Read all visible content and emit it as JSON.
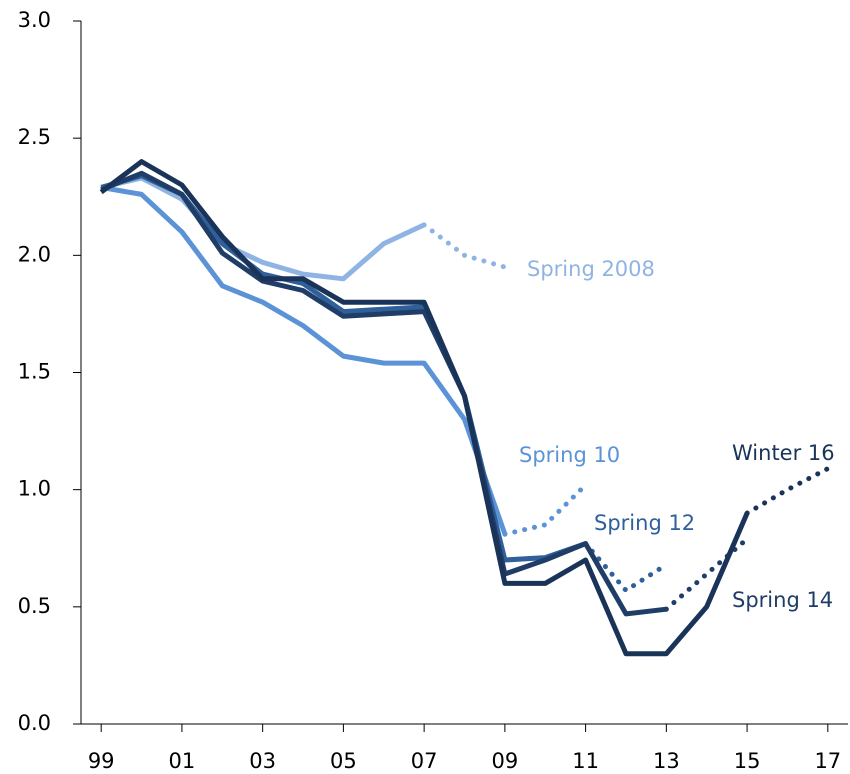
{
  "chart_data": {
    "type": "line",
    "x": [
      1999,
      2000,
      2001,
      2002,
      2003,
      2004,
      2005,
      2006,
      2007,
      2008,
      2009,
      2010,
      2011,
      2012,
      2013,
      2014,
      2015,
      2016,
      2017
    ],
    "xlim": [
      1998.5,
      2017.5
    ],
    "xticks": [
      {
        "value": 1999,
        "label": "99"
      },
      {
        "value": 2001,
        "label": "01"
      },
      {
        "value": 2003,
        "label": "03"
      },
      {
        "value": 2005,
        "label": "05"
      },
      {
        "value": 2007,
        "label": "07"
      },
      {
        "value": 2009,
        "label": "09"
      },
      {
        "value": 2011,
        "label": "11"
      },
      {
        "value": 2013,
        "label": "13"
      },
      {
        "value": 2015,
        "label": "15"
      },
      {
        "value": 2017,
        "label": "17"
      }
    ],
    "ylim": [
      0,
      3
    ],
    "yticks": [
      {
        "value": 0,
        "label": "0.0"
      },
      0.5,
      {
        "value": 1,
        "label": "1.0"
      },
      1.5,
      {
        "value": 2,
        "label": "2.0"
      },
      2.5,
      {
        "value": 3,
        "label": "3.0"
      }
    ],
    "grid": false,
    "series": [
      {
        "name": "Spring 2008",
        "color": "#8fb4e3",
        "values": [
          2.29,
          2.33,
          2.24,
          2.05,
          1.97,
          1.92,
          1.9,
          2.05,
          2.13,
          null,
          null,
          null,
          null,
          null,
          null,
          null,
          null,
          null,
          null
        ],
        "forecast": [
          null,
          null,
          null,
          null,
          null,
          null,
          null,
          null,
          2.13,
          2.0,
          1.95,
          null,
          null,
          null,
          null,
          null,
          null,
          null,
          null
        ]
      },
      {
        "name": "Spring 10",
        "color": "#5b93d6",
        "values": [
          2.29,
          2.26,
          2.1,
          1.87,
          1.8,
          1.7,
          1.57,
          1.54,
          1.54,
          1.3,
          0.81,
          null,
          null,
          null,
          null,
          null,
          null,
          null,
          null
        ],
        "forecast": [
          null,
          null,
          null,
          null,
          null,
          null,
          null,
          null,
          null,
          null,
          0.81,
          0.85,
          1.02,
          null,
          null,
          null,
          null,
          null,
          null
        ]
      },
      {
        "name": "Spring 12",
        "color": "#30609c",
        "values": [
          2.29,
          2.34,
          2.26,
          2.05,
          1.92,
          1.88,
          1.76,
          1.77,
          1.78,
          1.4,
          0.7,
          0.71,
          0.77,
          null,
          null,
          null,
          null,
          null,
          null
        ],
        "forecast": [
          null,
          null,
          null,
          null,
          null,
          null,
          null,
          null,
          null,
          null,
          null,
          null,
          0.77,
          0.57,
          0.68,
          null,
          null,
          null,
          null
        ]
      },
      {
        "name": "Spring 14",
        "color": "#1f3d66",
        "values": [
          2.28,
          2.35,
          2.26,
          2.01,
          1.89,
          1.85,
          1.74,
          1.75,
          1.76,
          1.4,
          0.64,
          0.7,
          0.77,
          0.47,
          0.49,
          null,
          null,
          null,
          null
        ],
        "forecast": [
          null,
          null,
          null,
          null,
          null,
          null,
          null,
          null,
          null,
          null,
          null,
          null,
          null,
          null,
          0.49,
          0.64,
          0.79,
          null,
          null
        ]
      },
      {
        "name": "Winter 16",
        "color": "#1a3358",
        "values": [
          2.27,
          2.4,
          2.3,
          2.08,
          1.9,
          1.9,
          1.8,
          1.8,
          1.8,
          1.4,
          0.6,
          0.6,
          0.7,
          0.3,
          0.3,
          0.5,
          0.9,
          null,
          null
        ],
        "forecast": [
          null,
          null,
          null,
          null,
          null,
          null,
          null,
          null,
          null,
          null,
          null,
          null,
          null,
          null,
          null,
          null,
          0.9,
          1.0,
          1.09
        ]
      }
    ]
  }
}
